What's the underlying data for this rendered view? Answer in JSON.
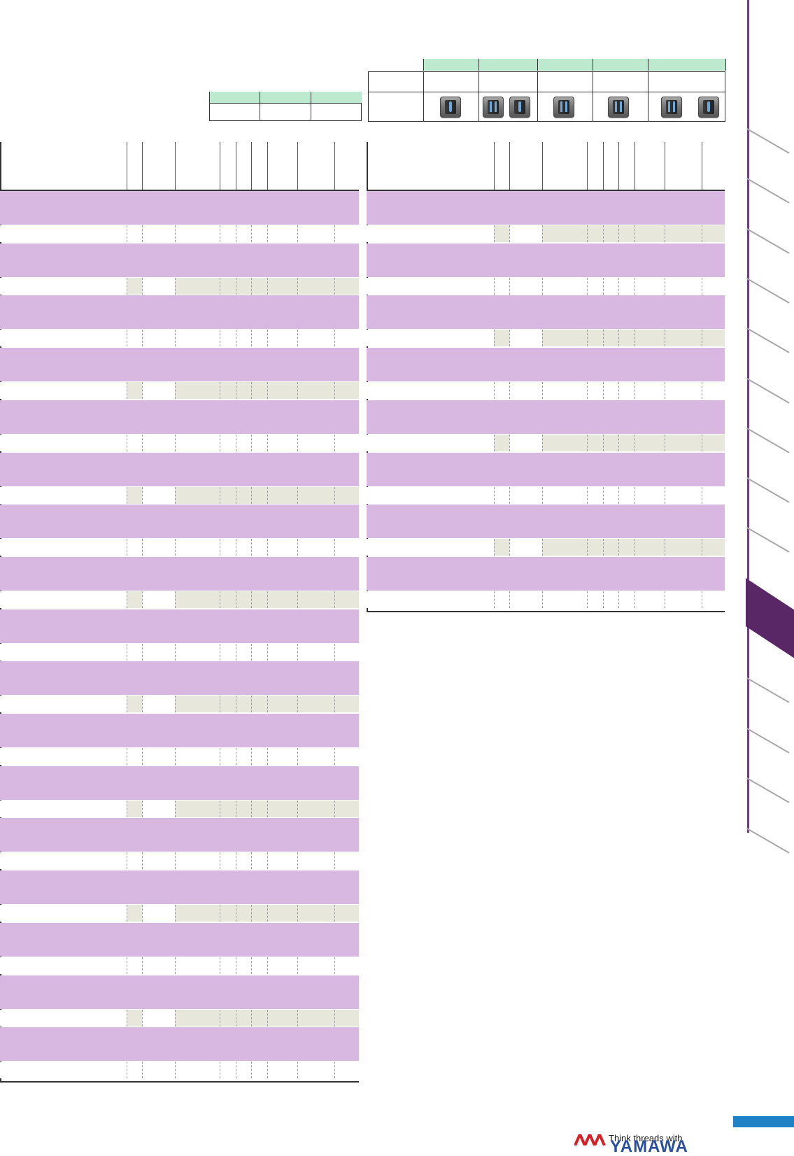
{
  "legend_small": {
    "columns": [
      "",
      "",
      ""
    ]
  },
  "legend_large": {
    "columns": [
      "",
      "",
      "",
      "",
      ""
    ],
    "icons": [
      "single-thread-icon",
      "double-thread-icon",
      "single-thread-icon",
      "double-thread-icon",
      "double-thread-icon",
      "double-thread-icon",
      "single-thread-icon"
    ]
  },
  "left_table": {
    "rows": 17
  },
  "right_table": {
    "rows": 8
  },
  "footer": {
    "tagline": "Think threads with",
    "brand": "YAMAWA"
  },
  "colors": {
    "accent_purple": "#5a2766",
    "row_purple": "#d8b7e0",
    "legend_green": "#bde9cf",
    "shade": "#e8e7dc",
    "brand_blue": "#2b4fa0",
    "page_bar_blue": "#1f82c4"
  }
}
